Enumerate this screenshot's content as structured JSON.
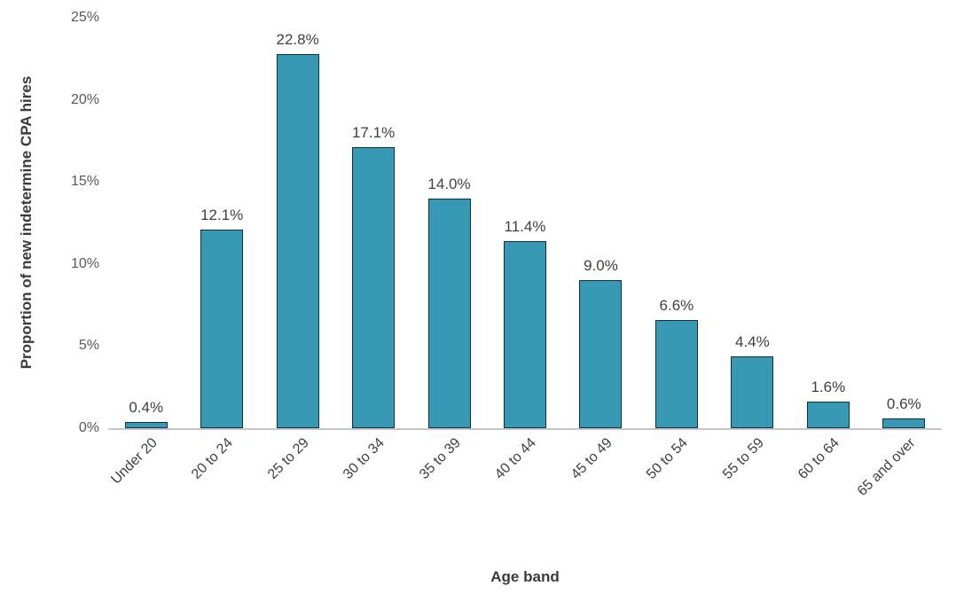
{
  "chart_data": {
    "type": "bar",
    "title": "",
    "xlabel": "Age band",
    "ylabel": "Proportion of new indetermine CPA hires",
    "categories": [
      "Under 20",
      "20 to 24",
      "25 to 29",
      "30 to 34",
      "35 to 39",
      "40 to 44",
      "45 to 49",
      "50 to 54",
      "55 to 59",
      "60 to 64",
      "65 and over"
    ],
    "values": [
      0.4,
      12.1,
      22.8,
      17.1,
      14.0,
      11.4,
      9.0,
      6.6,
      4.4,
      1.6,
      0.6
    ],
    "data_labels": [
      "0.4%",
      "12.1%",
      "22.8%",
      "17.1%",
      "14.0%",
      "11.4%",
      "9.0%",
      "6.6%",
      "4.4%",
      "1.6%",
      "0.6%"
    ],
    "y_ticks": [
      "0%",
      "5%",
      "10%",
      "15%",
      "20%",
      "25%"
    ],
    "ylim": [
      0,
      25
    ],
    "bar_color": "#3899b4",
    "bar_border_color": "#0e2f3c",
    "axis_line_color": "#c6c6c6",
    "grid": "off",
    "legend": "none"
  }
}
